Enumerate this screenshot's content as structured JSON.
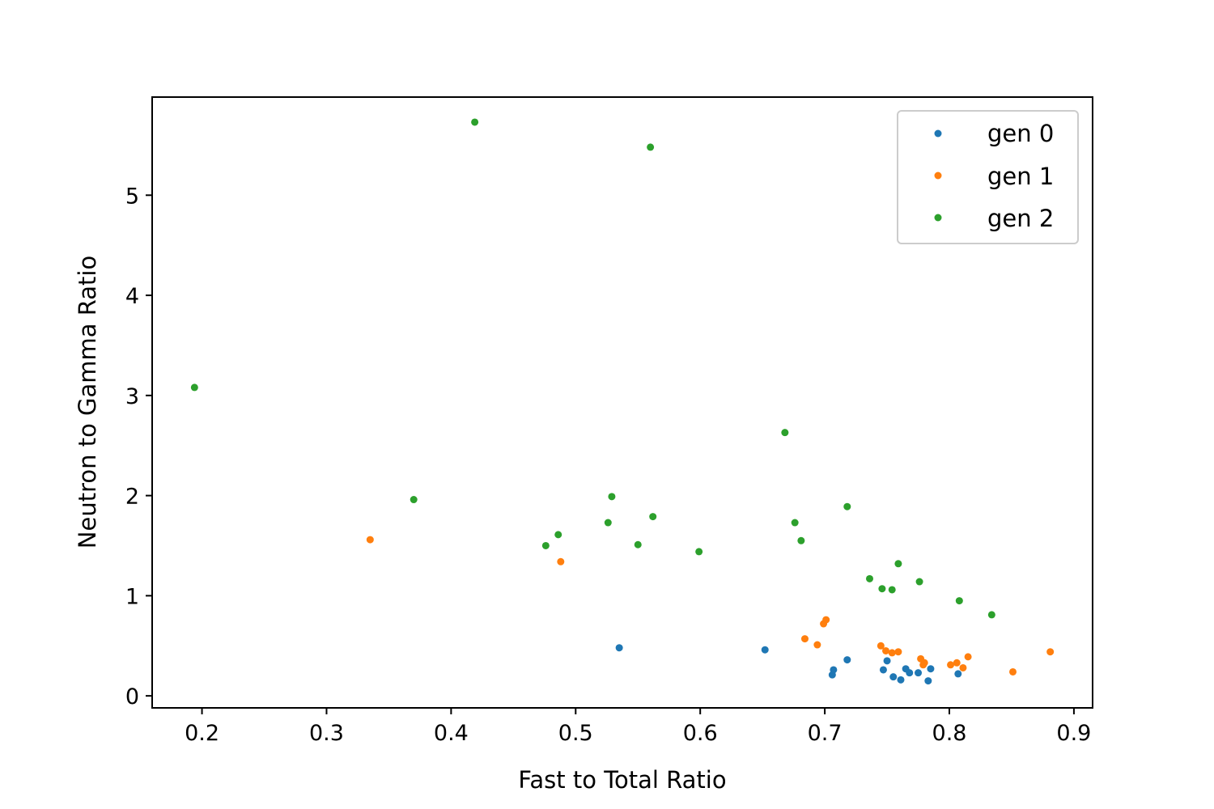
{
  "chart_data": {
    "type": "scatter",
    "title": "",
    "xlabel": "Fast to Total Ratio",
    "ylabel": "Neutron to Gamma Ratio",
    "xlim": [
      0.16,
      0.915
    ],
    "ylim": [
      -0.12,
      5.98
    ],
    "xticks": [
      0.2,
      0.3,
      0.4,
      0.5,
      0.6,
      0.7,
      0.8,
      0.9
    ],
    "xtick_labels": [
      "0.2",
      "0.3",
      "0.4",
      "0.5",
      "0.6",
      "0.7",
      "0.8",
      "0.9"
    ],
    "yticks": [
      0,
      1,
      2,
      3,
      4,
      5
    ],
    "ytick_labels": [
      "0",
      "1",
      "2",
      "3",
      "4",
      "5"
    ],
    "grid": false,
    "legend_position": "top-right",
    "series": [
      {
        "name": "gen 0",
        "color": "#1f77b4",
        "points": [
          [
            0.535,
            0.48
          ],
          [
            0.652,
            0.46
          ],
          [
            0.706,
            0.21
          ],
          [
            0.707,
            0.26
          ],
          [
            0.718,
            0.36
          ],
          [
            0.747,
            0.26
          ],
          [
            0.75,
            0.35
          ],
          [
            0.755,
            0.19
          ],
          [
            0.761,
            0.16
          ],
          [
            0.765,
            0.27
          ],
          [
            0.768,
            0.23
          ],
          [
            0.775,
            0.23
          ],
          [
            0.783,
            0.15
          ],
          [
            0.785,
            0.27
          ],
          [
            0.807,
            0.22
          ]
        ]
      },
      {
        "name": "gen 1",
        "color": "#ff7f0e",
        "points": [
          [
            0.335,
            1.56
          ],
          [
            0.488,
            1.34
          ],
          [
            0.684,
            0.57
          ],
          [
            0.694,
            0.51
          ],
          [
            0.699,
            0.72
          ],
          [
            0.701,
            0.76
          ],
          [
            0.745,
            0.5
          ],
          [
            0.749,
            0.45
          ],
          [
            0.754,
            0.43
          ],
          [
            0.759,
            0.44
          ],
          [
            0.777,
            0.37
          ],
          [
            0.779,
            0.31
          ],
          [
            0.78,
            0.33
          ],
          [
            0.801,
            0.31
          ],
          [
            0.806,
            0.33
          ],
          [
            0.811,
            0.28
          ],
          [
            0.815,
            0.39
          ],
          [
            0.851,
            0.24
          ],
          [
            0.881,
            0.44
          ]
        ]
      },
      {
        "name": "gen 2",
        "color": "#2ca02c",
        "points": [
          [
            0.194,
            3.08
          ],
          [
            0.37,
            1.96
          ],
          [
            0.419,
            5.73
          ],
          [
            0.476,
            1.5
          ],
          [
            0.486,
            1.61
          ],
          [
            0.526,
            1.73
          ],
          [
            0.529,
            1.99
          ],
          [
            0.55,
            1.51
          ],
          [
            0.56,
            5.48
          ],
          [
            0.562,
            1.79
          ],
          [
            0.599,
            1.44
          ],
          [
            0.668,
            2.63
          ],
          [
            0.676,
            1.73
          ],
          [
            0.681,
            1.55
          ],
          [
            0.718,
            1.89
          ],
          [
            0.736,
            1.17
          ],
          [
            0.746,
            1.07
          ],
          [
            0.754,
            1.06
          ],
          [
            0.759,
            1.32
          ],
          [
            0.776,
            1.14
          ],
          [
            0.808,
            0.95
          ],
          [
            0.834,
            0.81
          ]
        ]
      }
    ]
  }
}
